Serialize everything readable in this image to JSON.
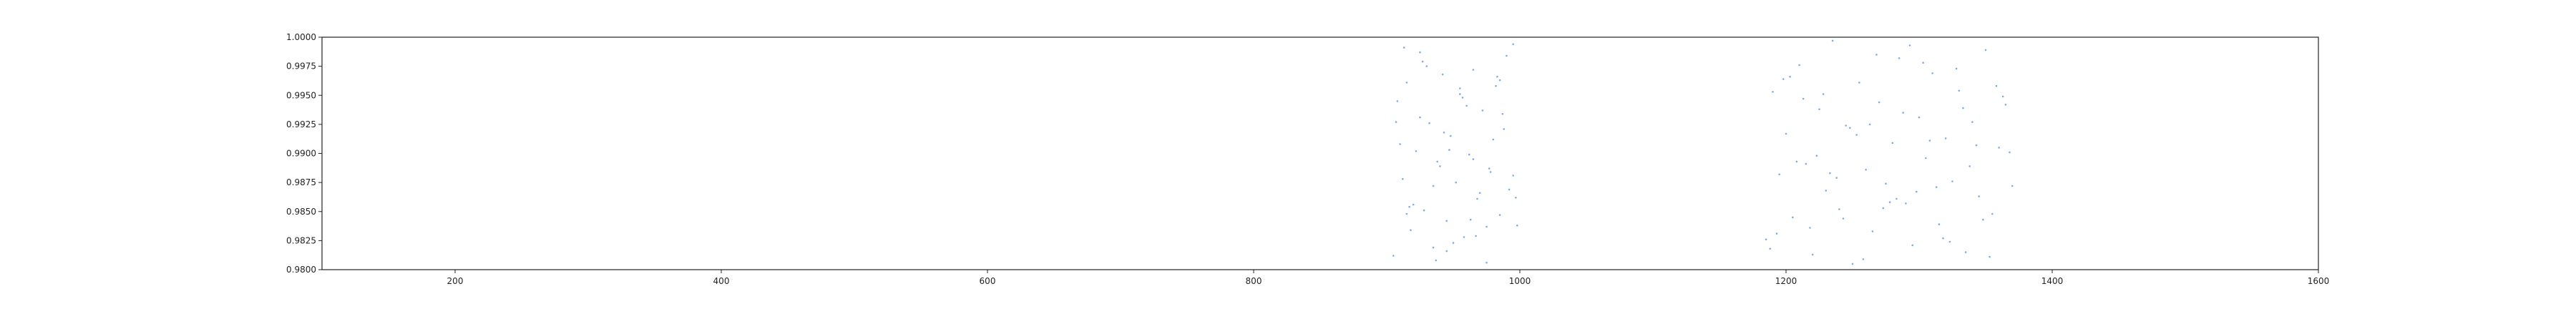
{
  "chart_data": {
    "type": "scatter",
    "title": "",
    "xlabel": "",
    "ylabel": "",
    "xlim": [
      100,
      1600
    ],
    "ylim": [
      0.98,
      1.0
    ],
    "grid": false,
    "legend": "none",
    "xticks": [
      200,
      400,
      600,
      800,
      1000,
      1200,
      1400,
      1600
    ],
    "xtick_labels": [
      "200",
      "400",
      "600",
      "800",
      "1000",
      "1200",
      "1400",
      "1600"
    ],
    "yticks": [
      0.98,
      0.9825,
      0.985,
      0.9875,
      0.99,
      0.9925,
      0.995,
      0.9975,
      1.0
    ],
    "ytick_labels": [
      "0.9800",
      "0.9825",
      "0.9850",
      "0.9875",
      "0.9900",
      "0.9925",
      "0.9950",
      "0.9975",
      "1.0000"
    ],
    "point_color": "#5b8fd6",
    "series": [
      {
        "x": [
          905,
          908,
          912,
          915,
          918,
          922,
          925,
          928,
          932,
          935,
          938,
          942,
          945,
          948,
          952,
          955,
          958,
          962,
          965,
          968,
          972,
          975,
          978,
          982,
          985,
          988,
          992,
          995,
          998,
          910,
          920,
          930,
          940,
          950,
          960,
          970,
          980,
          990,
          915,
          925,
          935,
          945,
          955,
          965,
          975,
          985,
          995,
          907,
          917,
          927,
          937,
          947,
          957,
          967,
          977,
          987,
          997,
          913,
          943,
          963,
          983,
          1185,
          1190,
          1195,
          1200,
          1205,
          1210,
          1215,
          1220,
          1225,
          1230,
          1235,
          1240,
          1245,
          1250,
          1255,
          1260,
          1265,
          1270,
          1275,
          1280,
          1285,
          1290,
          1295,
          1300,
          1305,
          1310,
          1315,
          1320,
          1325,
          1330,
          1335,
          1340,
          1345,
          1350,
          1355,
          1360,
          1365,
          1370,
          1188,
          1198,
          1208,
          1218,
          1228,
          1238,
          1248,
          1258,
          1268,
          1278,
          1288,
          1298,
          1308,
          1318,
          1328,
          1338,
          1348,
          1358,
          1368,
          1193,
          1213,
          1233,
          1253,
          1273,
          1293,
          1313,
          1333,
          1353,
          1203,
          1223,
          1243,
          1263,
          1283,
          1303,
          1323,
          1343,
          1363
        ],
        "y": [
          0.9812,
          0.9945,
          0.9878,
          0.9961,
          0.9834,
          0.9902,
          0.9987,
          0.9851,
          0.9926,
          0.9819,
          0.9893,
          0.9968,
          0.9842,
          0.9915,
          0.9875,
          0.9951,
          0.9828,
          0.9899,
          0.9972,
          0.9861,
          0.9937,
          0.9806,
          0.9884,
          0.9958,
          0.9847,
          0.9921,
          0.9869,
          0.9994,
          0.9838,
          0.9908,
          0.9856,
          0.9975,
          0.9889,
          0.9823,
          0.9941,
          0.9866,
          0.9912,
          0.9984,
          0.9848,
          0.9931,
          0.9872,
          0.9816,
          0.9956,
          0.9895,
          0.9837,
          0.9963,
          0.9881,
          0.9927,
          0.9854,
          0.9979,
          0.9808,
          0.9903,
          0.9948,
          0.9829,
          0.9887,
          0.9934,
          0.9862,
          0.9991,
          0.9918,
          0.9843,
          0.9966,
          0.9826,
          0.9953,
          0.9882,
          0.9917,
          0.9845,
          0.9976,
          0.9891,
          0.9813,
          0.9938,
          0.9868,
          0.9997,
          0.9852,
          0.9924,
          0.9805,
          0.9961,
          0.9886,
          0.9833,
          0.9944,
          0.9874,
          0.9909,
          0.9982,
          0.9857,
          0.9821,
          0.9931,
          0.9896,
          0.9969,
          0.9839,
          0.9913,
          0.9876,
          0.9954,
          0.9815,
          0.9927,
          0.9863,
          0.9989,
          0.9848,
          0.9905,
          0.9942,
          0.9872,
          0.9818,
          0.9964,
          0.9893,
          0.9836,
          0.9951,
          0.9879,
          0.9922,
          0.9809,
          0.9985,
          0.9858,
          0.9935,
          0.9867,
          0.9911,
          0.9827,
          0.9973,
          0.9889,
          0.9843,
          0.9958,
          0.9901,
          0.9831,
          0.9947,
          0.9883,
          0.9916,
          0.9853,
          0.9993,
          0.9871,
          0.9939,
          0.9811,
          0.9966,
          0.9898,
          0.9844,
          0.9925,
          0.9861,
          0.9978,
          0.9824,
          0.9907,
          0.9949
        ]
      }
    ]
  }
}
